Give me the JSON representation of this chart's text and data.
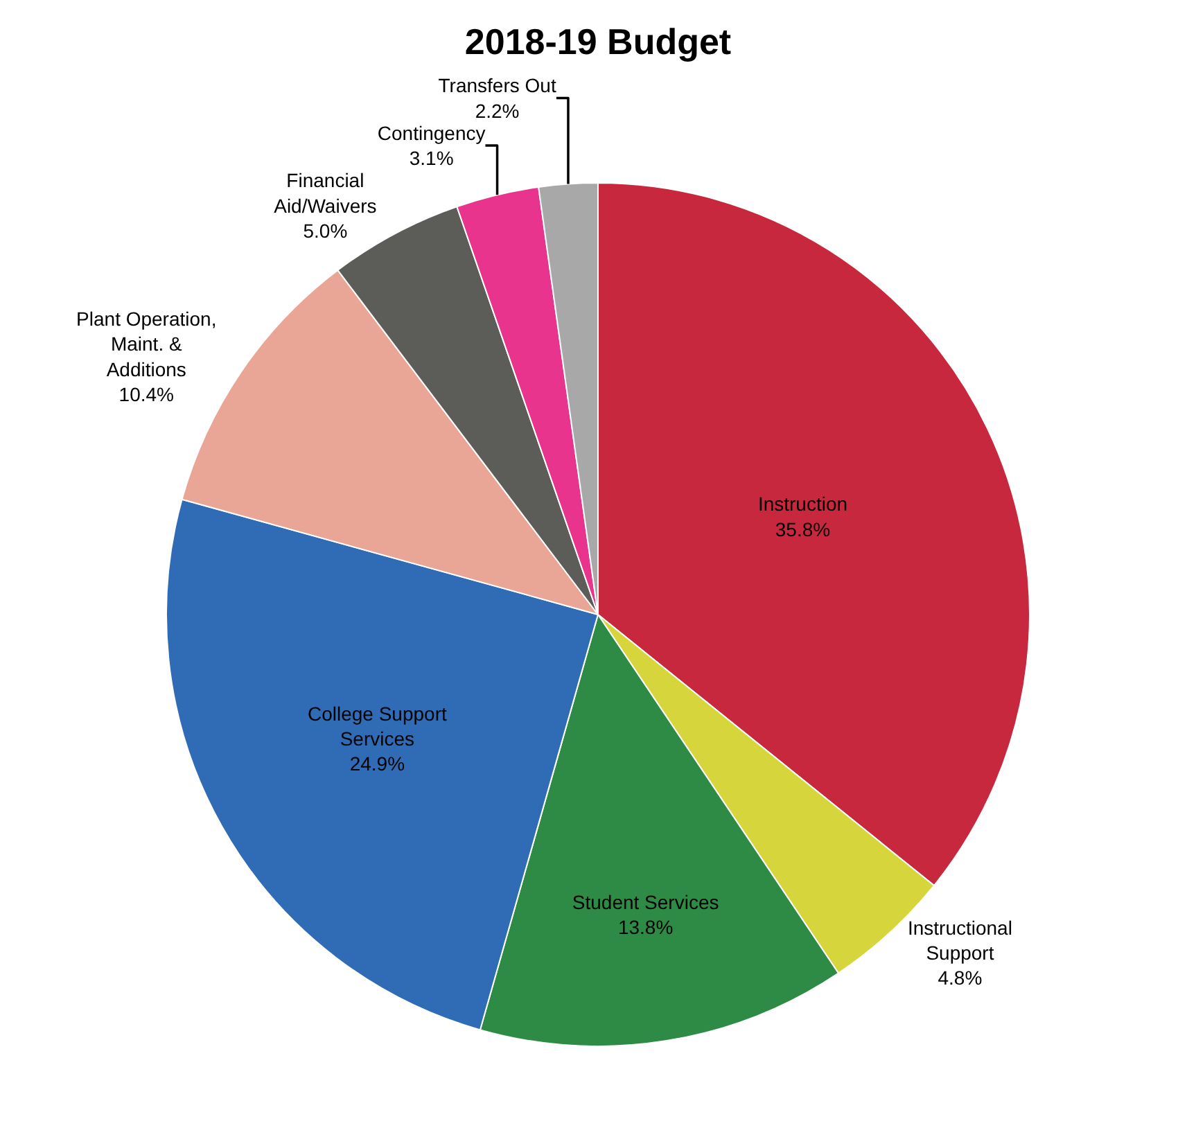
{
  "chart_data": {
    "type": "pie",
    "title": "2018-19 Budget",
    "categories": [
      "Instruction",
      "Instructional Support",
      "Student Services",
      "College Support Services",
      "Plant Operation, Maint. & Additions",
      "Financial Aid/Waivers",
      "Contingency",
      "Transfers Out"
    ],
    "values": [
      35.8,
      4.8,
      13.8,
      24.9,
      10.4,
      5.0,
      3.1,
      2.2
    ],
    "value_labels": [
      "35.8%",
      "4.8%",
      "13.8%",
      "24.9%",
      "10.4%",
      "5.0%",
      "3.1%",
      "2.2%"
    ],
    "colors": [
      "#c8283e",
      "#d6d63c",
      "#2e8b45",
      "#2f6cb5",
      "#e9a595",
      "#5c5c58",
      "#e8348c",
      "#a8a8a8"
    ],
    "legend": false
  }
}
